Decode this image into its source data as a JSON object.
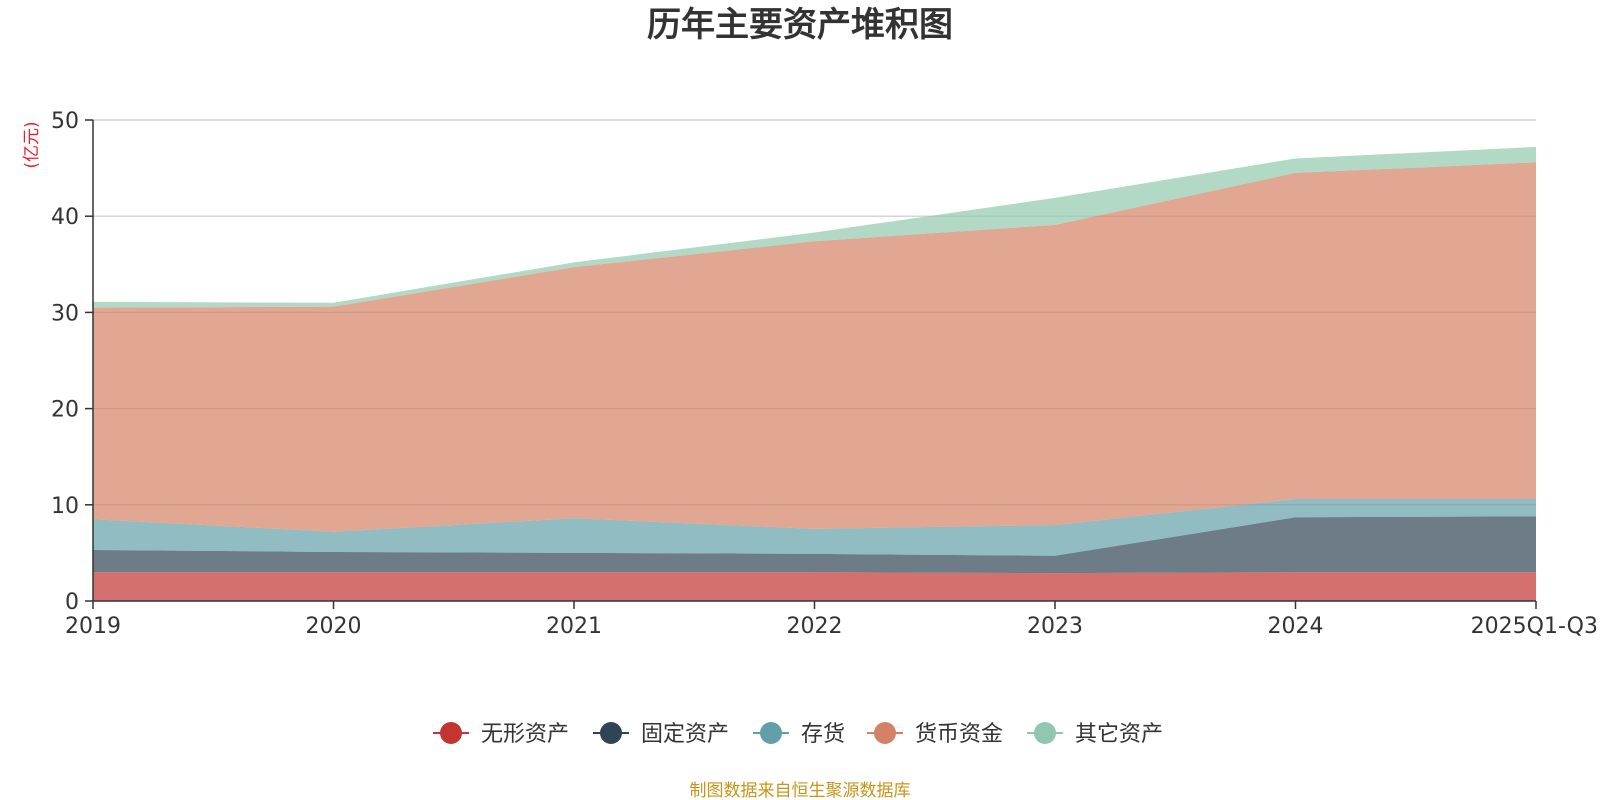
{
  "chart_data": {
    "type": "area",
    "stacked": true,
    "title": "历年主要资产堆积图",
    "ylabel": "(亿元)",
    "ylim": [
      0,
      50
    ],
    "yticks": [
      0,
      10,
      20,
      30,
      40,
      50
    ],
    "grid": true,
    "legend_position": "bottom",
    "categories": [
      "2019",
      "2020",
      "2021",
      "2022",
      "2023",
      "2024",
      "2025Q1-Q3"
    ],
    "series": [
      {
        "name": "无形资产",
        "color": "#c23531",
        "values": [
          3.0,
          3.0,
          3.0,
          3.0,
          2.9,
          3.0,
          3.0
        ]
      },
      {
        "name": "固定资产",
        "color": "#2f4554",
        "values": [
          2.3,
          2.1,
          2.0,
          1.9,
          1.8,
          5.7,
          5.8
        ]
      },
      {
        "name": "存货",
        "color": "#61a0a8",
        "values": [
          3.2,
          2.1,
          3.6,
          2.6,
          3.2,
          1.9,
          1.8
        ]
      },
      {
        "name": "货币资金",
        "color": "#d48265",
        "values": [
          22.0,
          23.4,
          26.1,
          29.9,
          31.2,
          33.9,
          35.0
        ]
      },
      {
        "name": "其它资产",
        "color": "#91c7ae",
        "values": [
          0.6,
          0.4,
          0.5,
          0.9,
          2.8,
          1.5,
          1.6
        ]
      }
    ],
    "source_note": "制图数据来自恒生聚源数据库"
  },
  "colors": {
    "ylabel": "#e8202a",
    "source": "#c9941a",
    "axis": "#333333",
    "grid": "#c8c8c8"
  }
}
